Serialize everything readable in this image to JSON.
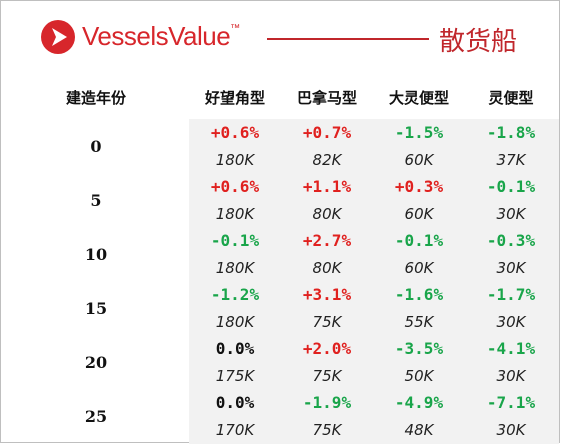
{
  "brand": {
    "name": "VesselsValue",
    "tm": "™",
    "color": "#d7262b"
  },
  "ship_type": "散货船",
  "columns": {
    "age_label": "建造年份",
    "types": [
      "好望角型",
      "巴拿马型",
      "大灵便型",
      "灵便型"
    ]
  },
  "colors": {
    "positive": "#e0211f",
    "negative": "#19a54a",
    "neutral": "#111111"
  },
  "rows": [
    {
      "age": "0",
      "cells": [
        {
          "pct": "+0.6%",
          "price": "180K"
        },
        {
          "pct": "+0.7%",
          "price": "82K"
        },
        {
          "pct": "-1.5%",
          "price": "60K"
        },
        {
          "pct": "-1.8%",
          "price": "37K"
        }
      ]
    },
    {
      "age": "5",
      "cells": [
        {
          "pct": "+0.6%",
          "price": "180K"
        },
        {
          "pct": "+1.1%",
          "price": "80K"
        },
        {
          "pct": "+0.3%",
          "price": "60K"
        },
        {
          "pct": "-0.1%",
          "price": "30K"
        }
      ]
    },
    {
      "age": "10",
      "cells": [
        {
          "pct": "-0.1%",
          "price": "180K"
        },
        {
          "pct": "+2.7%",
          "price": "80K"
        },
        {
          "pct": "-0.1%",
          "price": "60K"
        },
        {
          "pct": "-0.3%",
          "price": "30K"
        }
      ]
    },
    {
      "age": "15",
      "cells": [
        {
          "pct": "-1.2%",
          "price": "180K"
        },
        {
          "pct": "+3.1%",
          "price": "75K"
        },
        {
          "pct": "-1.6%",
          "price": "55K"
        },
        {
          "pct": "-1.7%",
          "price": "30K"
        }
      ]
    },
    {
      "age": "20",
      "cells": [
        {
          "pct": "0.0%",
          "price": "175K"
        },
        {
          "pct": "+2.0%",
          "price": "75K"
        },
        {
          "pct": "-3.5%",
          "price": "50K"
        },
        {
          "pct": "-4.1%",
          "price": "30K"
        }
      ]
    },
    {
      "age": "25",
      "cells": [
        {
          "pct": "0.0%",
          "price": "170K"
        },
        {
          "pct": "-1.9%",
          "price": "75K"
        },
        {
          "pct": "-4.9%",
          "price": "48K"
        },
        {
          "pct": "-7.1%",
          "price": "30K"
        }
      ]
    }
  ]
}
